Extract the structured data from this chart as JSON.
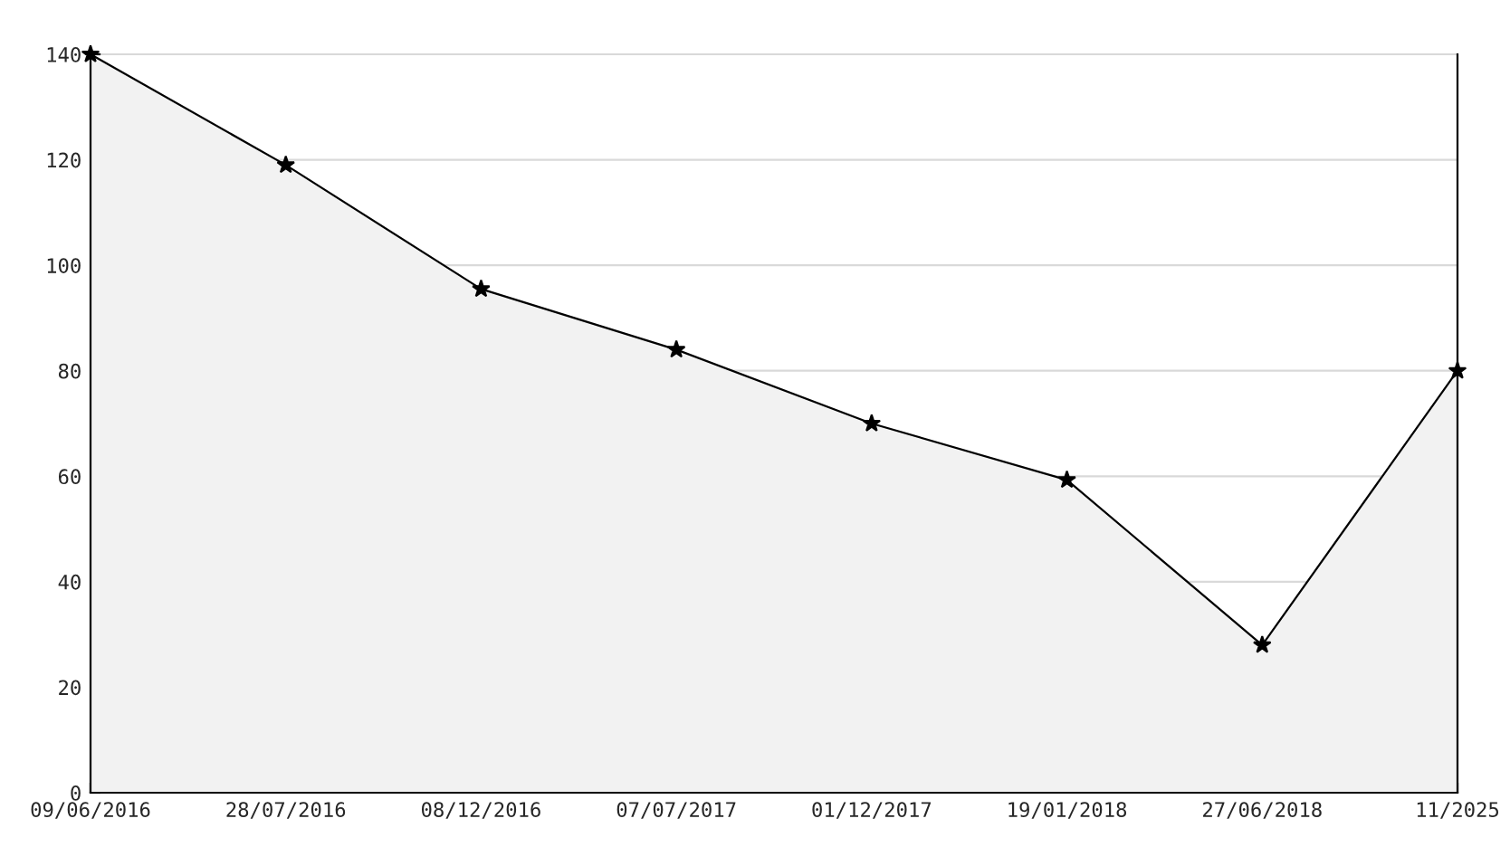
{
  "chart_data": {
    "type": "area",
    "categories": [
      "09/06/2016",
      "28/07/2016",
      "08/12/2016",
      "07/07/2017",
      "01/12/2017",
      "19/01/2018",
      "27/06/2018",
      "11/2025"
    ],
    "series": [
      {
        "color": "#f2f2f2",
        "values": [
          140,
          119,
          95.5,
          84,
          70,
          59.3,
          28,
          80
        ]
      }
    ],
    "ylim": [
      0,
      140
    ],
    "yticks": [
      0,
      {
        "value": 10,
        "label": null
      },
      20,
      {
        "value": 30,
        "label": null
      },
      40,
      {
        "value": 50,
        "label": null
      },
      60,
      {
        "value": 70,
        "label": null
      },
      80,
      {
        "value": 90,
        "label": null
      },
      100,
      {
        "value": 110,
        "label": null
      },
      120,
      {
        "value": 130,
        "label": null
      },
      140
    ],
    "grid": "y",
    "marker": "star",
    "line_style": "solid"
  }
}
